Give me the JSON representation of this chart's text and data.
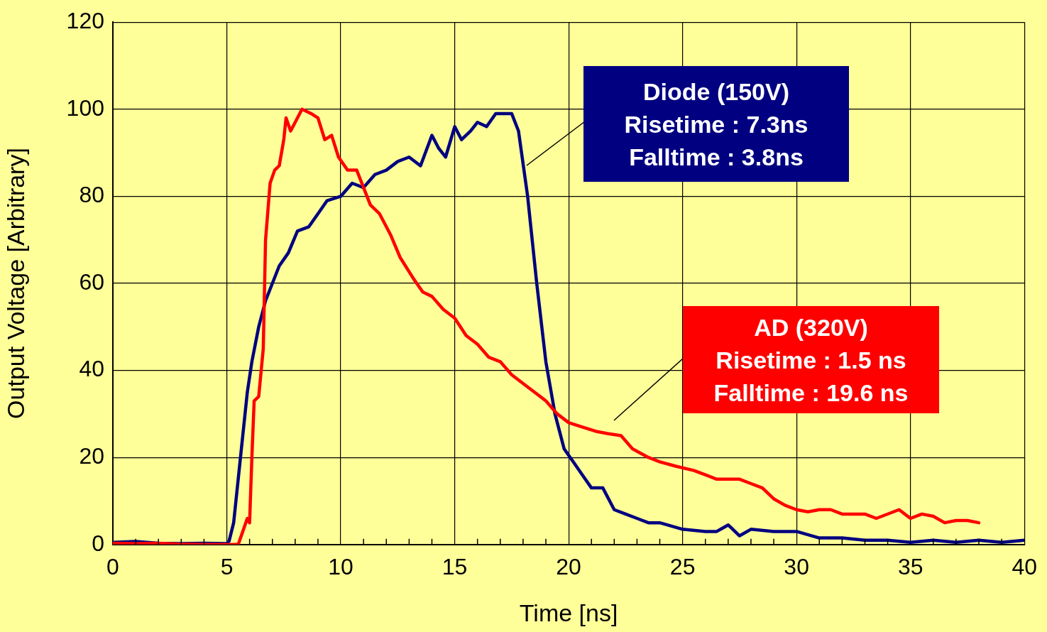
{
  "chart_data": {
    "type": "line",
    "xlabel": "Time [ns]",
    "ylabel": "Output Voltage [Arbitrary]",
    "xlim": [
      0,
      40
    ],
    "ylim": [
      0,
      120
    ],
    "xticks": [
      0,
      {
        "value": 1,
        "label": null
      },
      {
        "value": 2,
        "label": null
      },
      {
        "value": 3,
        "label": null
      },
      {
        "value": 4,
        "label": null
      },
      5,
      {
        "value": 6,
        "label": null
      },
      {
        "value": 7,
        "label": null
      },
      {
        "value": 8,
        "label": null
      },
      {
        "value": 9,
        "label": null
      },
      10,
      {
        "value": 11,
        "label": null
      },
      {
        "value": 12,
        "label": null
      },
      {
        "value": 13,
        "label": null
      },
      {
        "value": 14,
        "label": null
      },
      15,
      {
        "value": 16,
        "label": null
      },
      {
        "value": 17,
        "label": null
      },
      {
        "value": 18,
        "label": null
      },
      {
        "value": 19,
        "label": null
      },
      20,
      {
        "value": 21,
        "label": null
      },
      {
        "value": 22,
        "label": null
      },
      {
        "value": 23,
        "label": null
      },
      {
        "value": 24,
        "label": null
      },
      25,
      {
        "value": 26,
        "label": null
      },
      {
        "value": 27,
        "label": null
      },
      {
        "value": 28,
        "label": null
      },
      {
        "value": 29,
        "label": null
      },
      30,
      {
        "value": 31,
        "label": null
      },
      {
        "value": 32,
        "label": null
      },
      {
        "value": 33,
        "label": null
      },
      {
        "value": 34,
        "label": null
      },
      35,
      {
        "value": 36,
        "label": null
      },
      {
        "value": 37,
        "label": null
      },
      {
        "value": 38,
        "label": null
      },
      {
        "value": 39,
        "label": null
      },
      40
    ],
    "yticks": [
      0,
      20,
      40,
      60,
      80,
      100,
      120
    ],
    "grid": true,
    "legend": false,
    "marker": "none",
    "line_style": "solid",
    "series": [
      {
        "color": "#ff0000",
        "x": [
          0,
          1,
          2,
          3,
          4,
          5,
          5.5,
          5.7,
          5.9,
          6.0,
          6.1,
          6.2,
          6.4,
          6.6,
          6.7,
          6.9,
          7.1,
          7.3,
          7.5,
          7.6,
          7.8,
          8.0,
          8.3,
          8.7,
          9.0,
          9.3,
          9.6,
          9.9,
          10.3,
          10.7,
          11.0,
          11.3,
          11.7,
          12.2,
          12.6,
          13.2,
          13.6,
          14.0,
          14.5,
          15.0,
          15.5,
          16.0,
          16.5,
          17.0,
          17.5,
          18.0,
          18.5,
          19.0,
          19.5,
          20.0,
          20.6,
          21.2,
          21.7,
          22.3,
          22.8,
          23.5,
          24.0,
          24.7,
          25.5,
          26.0,
          26.5,
          27.0,
          27.5,
          28.0,
          28.5,
          29.0,
          29.5,
          30.0,
          30.5,
          31.0,
          31.5,
          32.0,
          33.0,
          33.5,
          34.5,
          35.0,
          35.5,
          36.0,
          36.5,
          37.0,
          37.5,
          38.0
        ],
        "values": [
          0.3,
          0.2,
          0.3,
          0.1,
          0,
          0,
          0,
          3,
          6,
          5,
          20,
          33,
          34,
          45,
          70,
          83,
          86,
          87,
          93,
          98,
          95,
          97,
          100,
          99,
          98,
          93,
          94,
          89,
          86,
          86,
          82,
          78,
          76,
          71,
          66,
          61,
          58,
          57,
          54,
          52,
          48,
          46,
          43,
          42,
          39,
          37,
          35,
          33,
          30,
          28,
          27,
          26,
          25.5,
          25,
          22,
          20,
          19,
          18,
          17,
          16,
          15,
          15,
          15,
          14,
          13,
          10.5,
          9,
          8,
          7.5,
          8,
          8,
          7,
          7,
          6,
          8,
          6,
          7,
          6.5,
          5,
          5.5,
          5.5,
          5
        ]
      },
      {
        "color": "#000080",
        "x": [
          0,
          1,
          2,
          3,
          4,
          5,
          5.1,
          5.3,
          5.5,
          5.7,
          5.9,
          6.1,
          6.4,
          6.7,
          7.0,
          7.3,
          7.7,
          8.1,
          8.6,
          9.0,
          9.4,
          10.0,
          10.5,
          11.0,
          11.5,
          12.0,
          12.5,
          13.0,
          13.5,
          14.0,
          14.3,
          14.6,
          15.0,
          15.3,
          15.7,
          16.0,
          16.4,
          16.8,
          17.2,
          17.5,
          17.8,
          18.2,
          18.6,
          19.0,
          19.4,
          19.8,
          20.2,
          20.6,
          21.0,
          21.5,
          22.0,
          22.5,
          23.0,
          23.5,
          24.0,
          25.0,
          26.0,
          26.5,
          27.0,
          27.5,
          28.0,
          29.0,
          30.0,
          31.0,
          32.0,
          33.0,
          34.0,
          35.0,
          36.0,
          37.0,
          38.0,
          39.0,
          40.0
        ],
        "values": [
          0.5,
          0.7,
          0.3,
          0.2,
          0.3,
          0.2,
          0.8,
          5,
          15,
          25,
          35,
          42,
          50,
          56,
          60,
          64,
          67,
          72,
          73,
          76,
          79,
          80,
          83,
          82,
          85,
          86,
          88,
          89,
          87,
          94,
          91,
          89,
          96,
          93,
          95,
          97,
          96,
          99,
          99,
          99,
          95,
          80,
          60,
          42,
          30,
          22,
          19,
          16,
          13,
          13,
          8,
          7,
          6,
          5,
          5,
          3.5,
          3,
          3,
          4.5,
          2,
          3.5,
          3,
          3,
          1.5,
          1.5,
          1,
          1,
          0.5,
          1,
          0.5,
          1,
          0.5,
          1
        ]
      }
    ],
    "annotations": [
      "AD (320V)\nRisetime : 1.5 ns\nFalltime : 19.6 ns",
      "Diode (150V)\nRisetime : 7.3ns\nFalltime : 3.8ns"
    ]
  }
}
